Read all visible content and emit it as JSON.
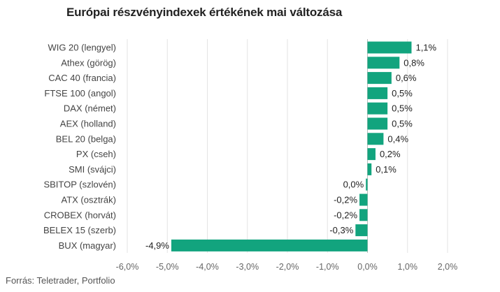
{
  "chart_data": {
    "type": "bar",
    "orientation": "horizontal",
    "title": "Európai részvényindexek értékének mai változása",
    "categories": [
      "WIG 20 (lengyel)",
      "Athex (görög)",
      "CAC 40 (francia)",
      "FTSE 100 (angol)",
      "DAX (német)",
      "AEX (holland)",
      "BEL 20 (belga)",
      "PX (cseh)",
      "SMI (svájci)",
      "SBITOP (szlovén)",
      "ATX (osztrák)",
      "CROBEX (horvát)",
      "BELEX 15 (szerb)",
      "BUX (magyar)"
    ],
    "values": [
      1.1,
      0.8,
      0.6,
      0.5,
      0.5,
      0.5,
      0.4,
      0.2,
      0.1,
      -0.04,
      -0.2,
      -0.2,
      -0.3,
      -4.9
    ],
    "value_labels": [
      "1,1%",
      "0,8%",
      "0,6%",
      "0,5%",
      "0,5%",
      "0,5%",
      "0,4%",
      "0,2%",
      "0,1%",
      "0,0%",
      "-0,2%",
      "-0,2%",
      "-0,3%",
      "-4,9%"
    ],
    "xlim": [
      -6.0,
      2.0
    ],
    "x_ticks": [
      -6,
      -5,
      -4,
      -3,
      -2,
      -1,
      0,
      1,
      2
    ],
    "x_tick_labels": [
      "-6,0%",
      "-5,0%",
      "-4,0%",
      "-3,0%",
      "-2,0%",
      "-1,0%",
      "0,0%",
      "1,0%",
      "2,0%"
    ],
    "bar_color": "#12a47e",
    "grid": "vertical",
    "source": "Forrás: Teletrader, Portfolio"
  }
}
